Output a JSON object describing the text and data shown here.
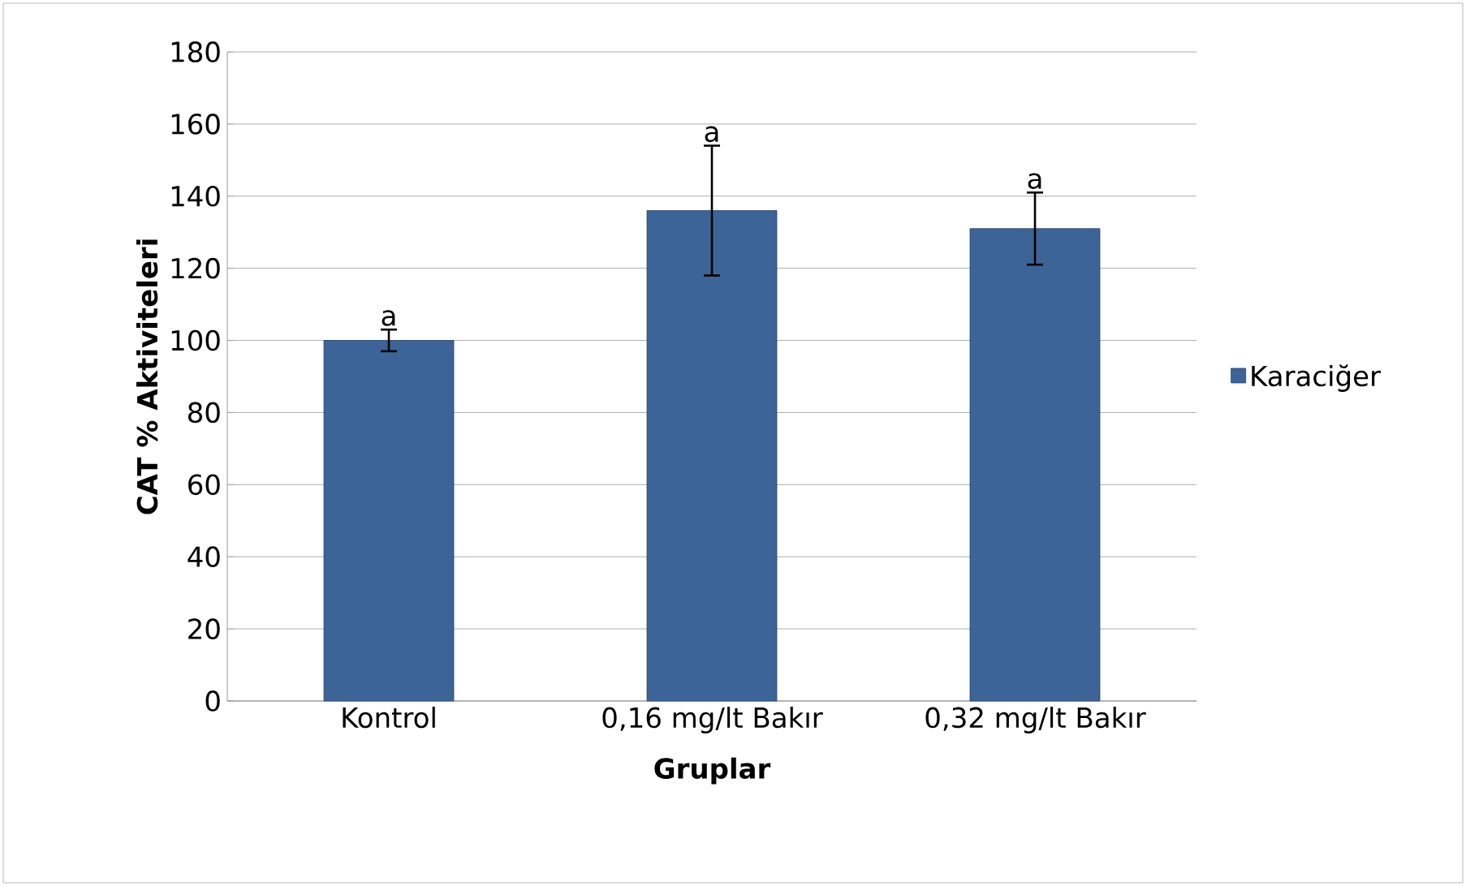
{
  "chart_data": {
    "type": "bar",
    "xlabel": "Gruplar",
    "ylabel": "CAT % Aktiviteleri",
    "categories": [
      "Kontrol",
      "0,16 mg/lt Bakır",
      "0,32 mg/lt Bakır"
    ],
    "series": [
      {
        "name": "Karaciğer",
        "color": "#3c6496",
        "values": [
          100,
          136,
          131
        ],
        "errors": [
          3,
          18,
          10
        ]
      }
    ],
    "ylim": [
      0,
      180
    ],
    "yticks": [
      0,
      20,
      40,
      60,
      80,
      100,
      120,
      140,
      160,
      180
    ],
    "grid": "y",
    "legend": "right",
    "annotations": [
      {
        "text": "a",
        "x": "Kontrol",
        "y": 103
      },
      {
        "text": "a",
        "x": "0,16 mg/lt Bakır",
        "y": 154
      },
      {
        "text": "a",
        "x": "0,32 mg/lt Bakır",
        "y": 141
      }
    ]
  }
}
